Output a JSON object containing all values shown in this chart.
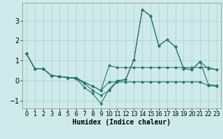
{
  "xlabel": "Humidex (Indice chaleur)",
  "ylabel": "",
  "background_color": "#ceeaea",
  "grid_color": "#aacece",
  "line_color": "#2d7368",
  "xlim": [
    -0.5,
    23.5
  ],
  "ylim": [
    -1.4,
    3.9
  ],
  "yticks": [
    -1,
    0,
    1,
    2,
    3
  ],
  "xticks": [
    0,
    1,
    2,
    3,
    4,
    5,
    6,
    7,
    8,
    9,
    10,
    11,
    12,
    13,
    14,
    15,
    16,
    17,
    18,
    19,
    20,
    21,
    22,
    23
  ],
  "series": [
    [
      1.35,
      0.6,
      0.6,
      0.25,
      0.2,
      0.15,
      0.1,
      -0.15,
      -0.5,
      -0.75,
      -0.5,
      -0.05,
      0.05,
      1.05,
      3.55,
      3.25,
      1.75,
      2.05,
      1.7,
      0.6,
      0.55,
      0.95,
      0.6,
      0.55
    ],
    [
      1.35,
      0.6,
      0.6,
      0.25,
      0.2,
      0.15,
      0.1,
      -0.35,
      -0.65,
      -1.15,
      -0.45,
      0.0,
      0.05,
      1.05,
      3.55,
      3.25,
      1.75,
      2.05,
      1.7,
      0.6,
      0.55,
      0.95,
      -0.2,
      -0.25
    ],
    [
      1.35,
      0.6,
      0.6,
      0.25,
      0.2,
      0.15,
      0.15,
      -0.1,
      -0.28,
      -0.5,
      0.75,
      0.65,
      0.65,
      0.65,
      0.65,
      0.65,
      0.65,
      0.65,
      0.65,
      0.65,
      0.65,
      0.65,
      0.65,
      0.55
    ],
    [
      1.35,
      0.6,
      0.6,
      0.25,
      0.2,
      0.15,
      0.15,
      -0.1,
      -0.28,
      -0.5,
      -0.07,
      -0.07,
      -0.07,
      -0.07,
      -0.07,
      -0.07,
      -0.07,
      -0.07,
      -0.07,
      -0.07,
      -0.07,
      -0.07,
      -0.25,
      -0.3
    ]
  ],
  "fontsize_xlabel": 7,
  "fontsize_ticks": 6,
  "fontsize_yticks": 7
}
